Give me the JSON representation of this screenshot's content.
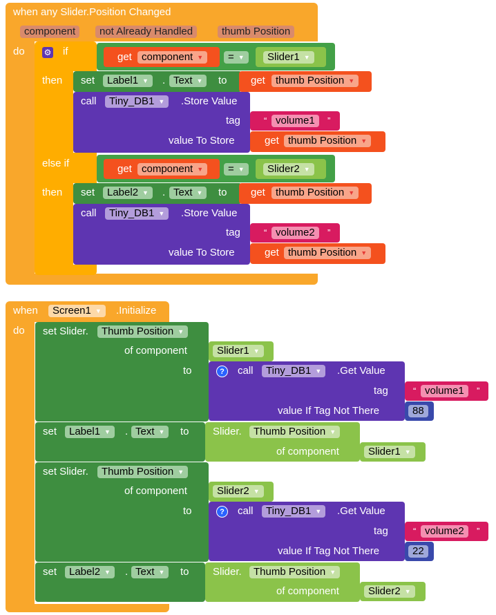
{
  "event1": {
    "header": "when any Slider.Position Changed",
    "params": [
      "component",
      "not Already Handled",
      "thumb Position"
    ],
    "do_label": "do",
    "if_label": "if",
    "then_label": "then",
    "else_if_label": "else if",
    "cond1": {
      "get": "get",
      "var": "component",
      "op": "=",
      "value": "Slider1"
    },
    "set1": {
      "set": "set",
      "component": "Label1",
      "dot": ".",
      "prop": "Text",
      "to": "to",
      "get": "get",
      "var": "thumb Position"
    },
    "call1": {
      "call": "call",
      "component": "Tiny_DB1",
      "method": ".Store Value",
      "tag_label": "tag",
      "tag_value": "volume1",
      "value_label": "value To Store",
      "get": "get",
      "var": "thumb Position"
    },
    "cond2": {
      "get": "get",
      "var": "component",
      "op": "=",
      "value": "Slider2"
    },
    "set2": {
      "set": "set",
      "component": "Label2",
      "dot": ".",
      "prop": "Text",
      "to": "to",
      "get": "get",
      "var": "thumb Position"
    },
    "call2": {
      "call": "call",
      "component": "Tiny_DB1",
      "method": ".Store Value",
      "tag_label": "tag",
      "tag_value": "volume2",
      "value_label": "value To Store",
      "get": "get",
      "var": "thumb Position"
    }
  },
  "event2": {
    "when": "when",
    "component": "Screen1",
    "event": ".Initialize",
    "do_label": "do",
    "s1": {
      "set": "set Slider.",
      "prop": "Thumb Position",
      "of": "of component",
      "comp": "Slider1",
      "to": "to",
      "call": "call",
      "db": "Tiny_DB1",
      "method": ".Get Value",
      "tag": "tag",
      "tag_value": "volume1",
      "vnt": "value If Tag Not There",
      "default": "88"
    },
    "s2": {
      "set": "set",
      "label": "Label1",
      "dot": ".",
      "prop": "Text",
      "to": "to",
      "slider": "Slider.",
      "sprop": "Thumb Position",
      "of": "of component",
      "comp": "Slider1"
    },
    "s3": {
      "set": "set Slider.",
      "prop": "Thumb Position",
      "of": "of component",
      "comp": "Slider2",
      "to": "to",
      "call": "call",
      "db": "Tiny_DB1",
      "method": ".Get Value",
      "tag": "tag",
      "tag_value": "volume2",
      "vnt": "value If Tag Not There",
      "default": "22"
    },
    "s4": {
      "set": "set",
      "label": "Label2",
      "dot": ".",
      "prop": "Text",
      "to": "to",
      "slider": "Slider.",
      "sprop": "Thumb Position",
      "of": "of component",
      "comp": "Slider2"
    }
  },
  "colors": {
    "event": "#F9A72B",
    "control": "#FFAD00",
    "setter": "#3E8E40",
    "getter": "#8BC34A",
    "logic": "#43A047",
    "tinydb": "#5E35B1",
    "variable": "#F4511E",
    "text": "#D81B60",
    "math": "#3949AB"
  }
}
